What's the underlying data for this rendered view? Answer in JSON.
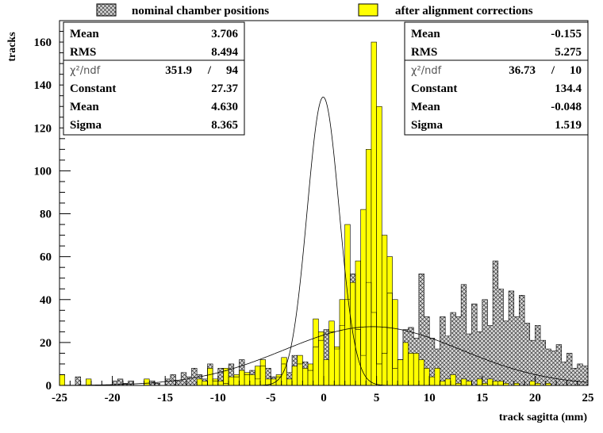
{
  "chart_data": {
    "type": "histogram",
    "xlabel": "track sagitta (mm)",
    "ylabel": "tracks",
    "xlim": [
      -25,
      25
    ],
    "ylim": [
      0,
      170
    ],
    "x_ticks": [
      -25,
      -20,
      -15,
      -10,
      -5,
      0,
      5,
      10,
      15,
      20,
      25
    ],
    "x_tick_labels": [
      "-25",
      "-20",
      "-15",
      "-10",
      "-5",
      "0",
      "5",
      "10",
      "15",
      "20",
      "25"
    ],
    "y_ticks": [
      0,
      20,
      40,
      60,
      80,
      100,
      120,
      140,
      160
    ],
    "y_tick_labels": [
      "0",
      "20",
      "40",
      "60",
      "80",
      "100",
      "120",
      "140",
      "160"
    ],
    "bin_width": 0.5,
    "bin_start": -25,
    "legend": {
      "position": "top",
      "entries": [
        "nominal chamber positions",
        "after alignment corrections"
      ]
    },
    "series": [
      {
        "name": "nominal chamber positions",
        "style": "crosshatch",
        "fill_color": "#c8c8c8",
        "values": [
          0,
          0,
          0,
          4,
          0,
          0,
          0,
          0,
          0,
          0,
          2,
          3,
          1,
          2,
          0,
          0,
          1,
          2,
          1,
          0,
          3,
          5,
          2,
          6,
          4,
          8,
          5,
          3,
          10,
          2,
          8,
          1,
          10,
          4,
          12,
          5,
          7,
          3,
          9,
          8,
          4,
          4,
          10,
          6,
          14,
          10,
          11,
          7,
          18,
          21,
          26,
          25,
          17,
          28,
          40,
          52,
          26,
          14,
          48,
          34,
          10,
          15,
          43,
          8,
          12,
          26,
          27,
          22,
          52,
          32,
          22,
          17,
          32,
          23,
          34,
          32,
          47,
          24,
          38,
          25,
          40,
          28,
          58,
          45,
          30,
          44,
          32,
          42,
          29,
          21,
          28,
          21,
          17,
          16,
          19,
          11,
          15,
          8,
          10,
          9
        ]
      },
      {
        "name": "after alignment corrections",
        "style": "solid",
        "fill_color": "#ffff00",
        "values": [
          5,
          0,
          0,
          0,
          0,
          3,
          0,
          0,
          0,
          0,
          0,
          0,
          0,
          0,
          0,
          0,
          3,
          0,
          0,
          0,
          0,
          0,
          0,
          0,
          0,
          0,
          3,
          2,
          8,
          3,
          2,
          8,
          4,
          5,
          7,
          6,
          5,
          9,
          12,
          3,
          3,
          5,
          13,
          3,
          9,
          14,
          8,
          10,
          31,
          25,
          12,
          30,
          18,
          40,
          75,
          48,
          58,
          82,
          110,
          160,
          130,
          70,
          60,
          40,
          12,
          20,
          15,
          15,
          12,
          8,
          4,
          8,
          2,
          3,
          5,
          1,
          3,
          2,
          0,
          3,
          1,
          3,
          2,
          2,
          1,
          0,
          1,
          0,
          0,
          2,
          1,
          0,
          1,
          0,
          0,
          0,
          0,
          0,
          0,
          0
        ]
      }
    ],
    "fits": [
      {
        "name": "nominal fit",
        "type": "gaussian",
        "constant": 27.37,
        "mean": 4.63,
        "sigma": 8.365
      },
      {
        "name": "aligned fit",
        "type": "gaussian",
        "constant": 134.4,
        "mean": -0.048,
        "sigma": 1.519
      }
    ],
    "stat_boxes": [
      {
        "position": "top-left",
        "rows": [
          {
            "label": "Mean",
            "value": "3.706"
          },
          {
            "label": "RMS",
            "value": "8.494"
          },
          {
            "label": "χ²/ndf",
            "value": "351.9",
            "sep": "/",
            "value2": "94"
          },
          {
            "label": "Constant",
            "value": "27.37"
          },
          {
            "label": "Mean",
            "value": "4.630"
          },
          {
            "label": "Sigma",
            "value": "8.365"
          }
        ]
      },
      {
        "position": "top-right",
        "rows": [
          {
            "label": "Mean",
            "value": "-0.155"
          },
          {
            "label": "RMS",
            "value": "5.275"
          },
          {
            "label": "χ²/ndf",
            "value": "36.73",
            "sep": "/",
            "value2": "10"
          },
          {
            "label": "Constant",
            "value": "134.4"
          },
          {
            "label": "Mean",
            "value": "-0.048"
          },
          {
            "label": "Sigma",
            "value": "1.519"
          }
        ]
      }
    ]
  }
}
